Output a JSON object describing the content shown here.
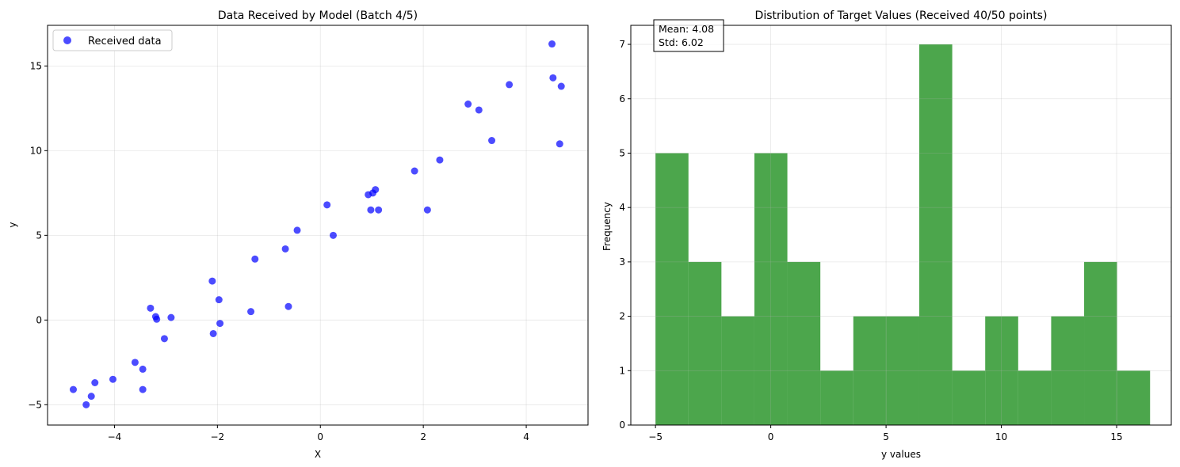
{
  "chart_data": [
    {
      "type": "scatter",
      "title": "Data Received by Model (Batch 4/5)",
      "xlabel": "X",
      "ylabel": "y",
      "xlim": [
        -5.3,
        5.2
      ],
      "ylim": [
        -6.2,
        17.4
      ],
      "xticks": [
        -4,
        -2,
        0,
        2,
        4
      ],
      "yticks": [
        -5,
        0,
        5,
        10,
        15
      ],
      "grid": true,
      "legend_position": "top-left",
      "series": [
        {
          "name": "Received data",
          "color": "#0000ff",
          "x": [
            -4.8,
            -4.55,
            -4.45,
            -4.38,
            -4.03,
            -3.6,
            -3.45,
            -3.45,
            -3.3,
            -3.2,
            -3.18,
            -3.03,
            -2.9,
            -2.1,
            -2.08,
            -1.97,
            -1.95,
            -1.35,
            -1.27,
            -0.68,
            -0.62,
            -0.45,
            0.13,
            0.25,
            0.93,
            0.98,
            1.02,
            1.07,
            1.13,
            1.83,
            2.08,
            2.32,
            2.87,
            3.08,
            3.33,
            3.67,
            4.5,
            4.52,
            4.65,
            4.68
          ],
          "y": [
            -4.1,
            -5.0,
            -4.5,
            -3.7,
            -3.5,
            -2.5,
            -2.9,
            -4.1,
            0.7,
            0.2,
            0.05,
            -1.1,
            0.15,
            2.3,
            -0.8,
            1.2,
            -0.2,
            0.5,
            3.6,
            4.2,
            0.8,
            5.3,
            6.8,
            5.0,
            7.4,
            6.5,
            7.5,
            7.7,
            6.5,
            8.8,
            6.5,
            9.45,
            12.75,
            12.4,
            10.6,
            13.9,
            16.3,
            14.3,
            10.4,
            13.8
          ]
        }
      ]
    },
    {
      "type": "bar",
      "title": "Distribution of Target Values (Received 40/50 points)",
      "xlabel": "y values",
      "ylabel": "Frequency",
      "xlim": [
        -6.07,
        17.37
      ],
      "ylim": [
        0,
        7.35
      ],
      "xticks": [
        -5,
        0,
        5,
        10,
        15
      ],
      "yticks": [
        0,
        1,
        2,
        3,
        4,
        5,
        6,
        7
      ],
      "grid": true,
      "color": "#008000",
      "bin_edges": [
        -5.0,
        -3.57,
        -2.14,
        -0.71,
        0.72,
        2.15,
        3.58,
        5.01,
        6.44,
        7.87,
        9.3,
        10.73,
        12.16,
        13.59,
        15.02,
        16.45
      ],
      "counts": [
        5,
        3,
        2,
        5,
        3,
        1,
        2,
        2,
        7,
        1,
        2,
        1,
        2,
        3,
        1
      ],
      "annotation": {
        "mean_label": "Mean: 4.08",
        "std_label": "Std: 6.02"
      }
    }
  ]
}
